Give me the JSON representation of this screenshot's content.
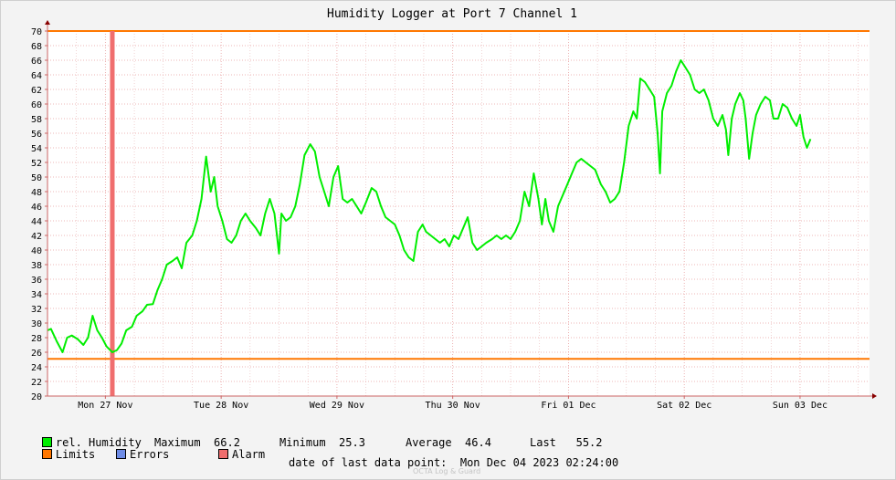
{
  "chart_data": {
    "type": "line",
    "title": "Humidity Logger at Port 7 Channel 1",
    "ylim": [
      20,
      70
    ],
    "yticks": [
      20,
      22,
      24,
      26,
      28,
      30,
      32,
      34,
      36,
      38,
      40,
      42,
      44,
      46,
      48,
      50,
      52,
      54,
      56,
      58,
      60,
      62,
      64,
      66,
      68,
      70
    ],
    "xlim": [
      0,
      7.1
    ],
    "xticks": [
      {
        "x": 0.5,
        "label": "Mon 27 Nov"
      },
      {
        "x": 1.5,
        "label": "Tue 28 Nov"
      },
      {
        "x": 2.5,
        "label": "Wed 29 Nov"
      },
      {
        "x": 3.5,
        "label": "Thu 30 Nov"
      },
      {
        "x": 4.5,
        "label": "Fri 01 Dec"
      },
      {
        "x": 5.5,
        "label": "Sat 02 Dec"
      },
      {
        "x": 6.5,
        "label": "Sun 03 Dec"
      }
    ],
    "limits": [
      25.1,
      70
    ],
    "alarm_x": 0.56,
    "series": [
      {
        "name": "rel. Humidity",
        "color": "#00ee00",
        "points": [
          [
            0.0,
            29.0
          ],
          [
            0.03,
            29.2
          ],
          [
            0.08,
            27.5
          ],
          [
            0.13,
            26.0
          ],
          [
            0.17,
            28.0
          ],
          [
            0.21,
            28.3
          ],
          [
            0.26,
            27.8
          ],
          [
            0.31,
            27.0
          ],
          [
            0.35,
            28.0
          ],
          [
            0.39,
            31.0
          ],
          [
            0.43,
            29.0
          ],
          [
            0.47,
            28.0
          ],
          [
            0.51,
            26.8
          ],
          [
            0.56,
            26.0
          ],
          [
            0.6,
            26.3
          ],
          [
            0.64,
            27.2
          ],
          [
            0.68,
            29.0
          ],
          [
            0.73,
            29.5
          ],
          [
            0.77,
            31.0
          ],
          [
            0.82,
            31.6
          ],
          [
            0.86,
            32.5
          ],
          [
            0.91,
            32.6
          ],
          [
            0.95,
            34.5
          ],
          [
            0.99,
            36.0
          ],
          [
            1.03,
            38.0
          ],
          [
            1.08,
            38.5
          ],
          [
            1.12,
            39.0
          ],
          [
            1.16,
            37.5
          ],
          [
            1.2,
            41.0
          ],
          [
            1.25,
            42.0
          ],
          [
            1.29,
            44.0
          ],
          [
            1.33,
            47.0
          ],
          [
            1.37,
            52.8
          ],
          [
            1.41,
            48.0
          ],
          [
            1.44,
            50.0
          ],
          [
            1.47,
            46.0
          ],
          [
            1.51,
            44.0
          ],
          [
            1.55,
            41.5
          ],
          [
            1.59,
            41.0
          ],
          [
            1.63,
            42.0
          ],
          [
            1.67,
            44.0
          ],
          [
            1.71,
            45.0
          ],
          [
            1.75,
            44.0
          ],
          [
            1.8,
            43.0
          ],
          [
            1.84,
            42.0
          ],
          [
            1.88,
            45.0
          ],
          [
            1.92,
            47.0
          ],
          [
            1.96,
            45.0
          ],
          [
            2.0,
            39.5
          ],
          [
            2.02,
            45.0
          ],
          [
            2.06,
            44.0
          ],
          [
            2.1,
            44.5
          ],
          [
            2.14,
            46.0
          ],
          [
            2.18,
            49.0
          ],
          [
            2.22,
            53.0
          ],
          [
            2.27,
            54.5
          ],
          [
            2.31,
            53.5
          ],
          [
            2.35,
            50.0
          ],
          [
            2.39,
            48.0
          ],
          [
            2.43,
            46.0
          ],
          [
            2.47,
            50.0
          ],
          [
            2.51,
            51.5
          ],
          [
            2.55,
            47.0
          ],
          [
            2.59,
            46.5
          ],
          [
            2.63,
            47.0
          ],
          [
            2.67,
            46.0
          ],
          [
            2.71,
            45.0
          ],
          [
            2.75,
            46.5
          ],
          [
            2.8,
            48.5
          ],
          [
            2.84,
            48.0
          ],
          [
            2.88,
            46.0
          ],
          [
            2.92,
            44.5
          ],
          [
            2.96,
            44.0
          ],
          [
            3.0,
            43.5
          ],
          [
            3.04,
            42.0
          ],
          [
            3.08,
            40.0
          ],
          [
            3.12,
            39.0
          ],
          [
            3.16,
            38.5
          ],
          [
            3.2,
            42.5
          ],
          [
            3.24,
            43.5
          ],
          [
            3.27,
            42.5
          ],
          [
            3.31,
            42.0
          ],
          [
            3.35,
            41.5
          ],
          [
            3.39,
            41.0
          ],
          [
            3.43,
            41.5
          ],
          [
            3.47,
            40.5
          ],
          [
            3.51,
            42.0
          ],
          [
            3.55,
            41.5
          ],
          [
            3.59,
            43.0
          ],
          [
            3.63,
            44.5
          ],
          [
            3.67,
            41.0
          ],
          [
            3.71,
            40.0
          ],
          [
            3.75,
            40.5
          ],
          [
            3.79,
            41.0
          ],
          [
            3.84,
            41.5
          ],
          [
            3.88,
            42.0
          ],
          [
            3.92,
            41.5
          ],
          [
            3.96,
            42.0
          ],
          [
            4.0,
            41.5
          ],
          [
            4.04,
            42.5
          ],
          [
            4.08,
            44.0
          ],
          [
            4.12,
            48.0
          ],
          [
            4.16,
            46.0
          ],
          [
            4.2,
            50.5
          ],
          [
            4.24,
            47.0
          ],
          [
            4.27,
            43.5
          ],
          [
            4.3,
            47.0
          ],
          [
            4.33,
            44.0
          ],
          [
            4.37,
            42.5
          ],
          [
            4.41,
            46.0
          ],
          [
            4.45,
            47.5
          ],
          [
            4.49,
            49.0
          ],
          [
            4.53,
            50.5
          ],
          [
            4.57,
            52.0
          ],
          [
            4.61,
            52.5
          ],
          [
            4.65,
            52.0
          ],
          [
            4.69,
            51.5
          ],
          [
            4.73,
            51.0
          ],
          [
            4.78,
            49.0
          ],
          [
            4.82,
            48.0
          ],
          [
            4.86,
            46.5
          ],
          [
            4.9,
            47.0
          ],
          [
            4.94,
            48.0
          ],
          [
            4.98,
            52.0
          ],
          [
            5.02,
            57.0
          ],
          [
            5.06,
            59.0
          ],
          [
            5.09,
            58.0
          ],
          [
            5.12,
            63.5
          ],
          [
            5.16,
            63.0
          ],
          [
            5.2,
            62.0
          ],
          [
            5.24,
            61.0
          ],
          [
            5.27,
            56.0
          ],
          [
            5.29,
            50.5
          ],
          [
            5.31,
            59.0
          ],
          [
            5.35,
            61.5
          ],
          [
            5.39,
            62.5
          ],
          [
            5.43,
            64.5
          ],
          [
            5.47,
            66.0
          ],
          [
            5.51,
            65.0
          ],
          [
            5.55,
            64.0
          ],
          [
            5.59,
            62.0
          ],
          [
            5.63,
            61.5
          ],
          [
            5.67,
            62.0
          ],
          [
            5.71,
            60.5
          ],
          [
            5.75,
            58.0
          ],
          [
            5.79,
            57.0
          ],
          [
            5.83,
            58.5
          ],
          [
            5.86,
            56.5
          ],
          [
            5.88,
            53.0
          ],
          [
            5.91,
            58.0
          ],
          [
            5.94,
            60.0
          ],
          [
            5.98,
            61.5
          ],
          [
            6.01,
            60.5
          ],
          [
            6.03,
            58.0
          ],
          [
            6.06,
            52.5
          ],
          [
            6.09,
            56.0
          ],
          [
            6.12,
            58.5
          ],
          [
            6.16,
            60.0
          ],
          [
            6.2,
            61.0
          ],
          [
            6.24,
            60.5
          ],
          [
            6.27,
            58.0
          ],
          [
            6.31,
            58.0
          ],
          [
            6.35,
            60.0
          ],
          [
            6.39,
            59.5
          ],
          [
            6.43,
            58.0
          ],
          [
            6.47,
            57.0
          ],
          [
            6.5,
            58.5
          ],
          [
            6.53,
            55.5
          ],
          [
            6.56,
            54.0
          ],
          [
            6.59,
            55.2
          ]
        ]
      }
    ],
    "grid": true
  },
  "legend": {
    "humidity_label": "rel. Humidity",
    "max_label": "Maximum",
    "max_value": "66.2",
    "min_label": "Minimum",
    "min_value": "25.3",
    "avg_label": "Average",
    "avg_value": "46.4",
    "last_label": "Last",
    "last_value": "55.2",
    "limits_label": "Limits",
    "errors_label": "Errors",
    "alarm_label": "Alarm"
  },
  "colors": {
    "humidity": "#00ee00",
    "limits": "#ff7700",
    "errors": "#6e8ce6",
    "alarm": "#f06e6e"
  },
  "footer": {
    "label": "date of last data point:",
    "value": "Mon Dec 04 2023 02:24:00"
  },
  "watermark": "OCTA Log & Guard"
}
